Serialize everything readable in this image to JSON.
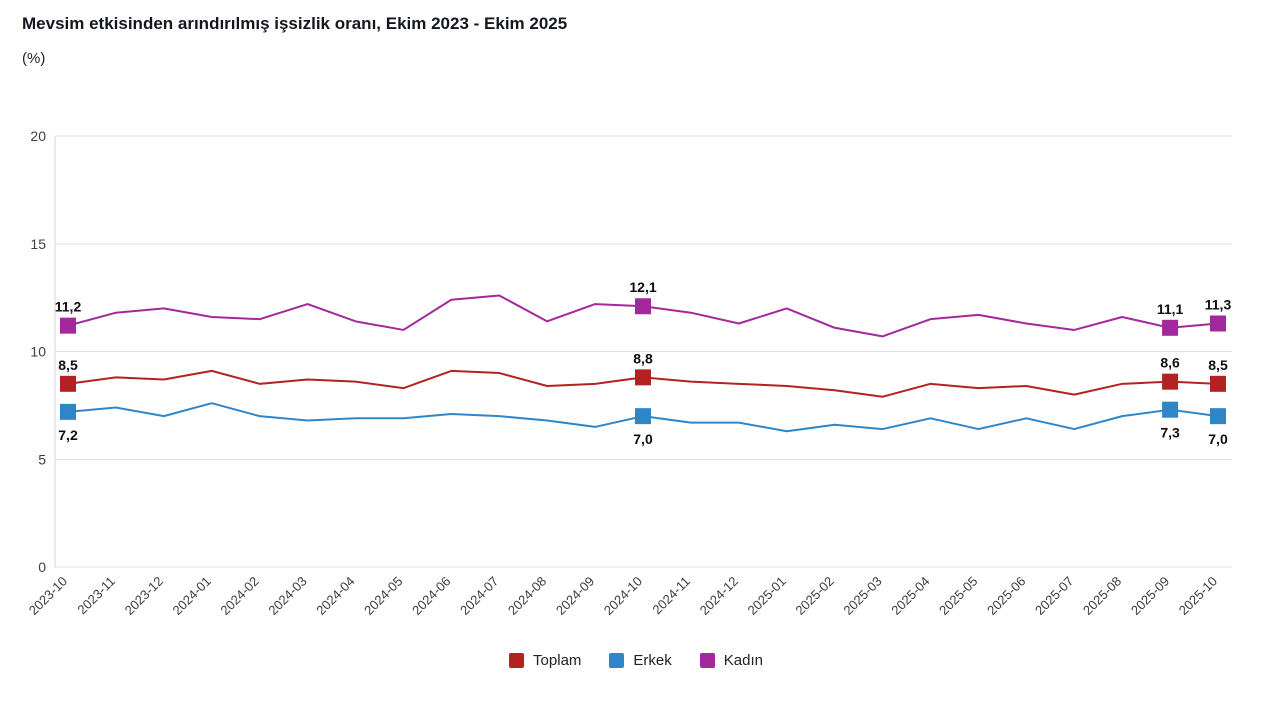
{
  "header": {
    "title": "Mevsim etkisinden arındırılmış işsizlik oranı, Ekim 2023 - Ekim 2025",
    "unit_label": "(%)"
  },
  "chart_data": {
    "type": "line",
    "title": "Mevsim etkisinden arındırılmış işsizlik oranı, Ekim 2023 - Ekim 2025",
    "unit_label": "(%)",
    "ylim": [
      0,
      20
    ],
    "yticks": [
      0,
      5,
      10,
      15,
      20
    ],
    "grid": "horizontal",
    "legend_position": "bottom",
    "categories": [
      "2023-10",
      "2023-11",
      "2023-12",
      "2024-01",
      "2024-02",
      "2024-03",
      "2024-04",
      "2024-05",
      "2024-06",
      "2024-07",
      "2024-08",
      "2024-09",
      "2024-10",
      "2024-11",
      "2024-12",
      "2025-01",
      "2025-02",
      "2025-03",
      "2025-04",
      "2025-05",
      "2025-06",
      "2025-07",
      "2025-08",
      "2025-09",
      "2025-10"
    ],
    "series": [
      {
        "id": "toplam",
        "name": "Toplam",
        "color": "#b22222",
        "label_position": "above",
        "values": [
          8.5,
          8.8,
          8.7,
          9.1,
          8.5,
          8.7,
          8.6,
          8.3,
          9.1,
          9.0,
          8.4,
          8.5,
          8.8,
          8.6,
          8.5,
          8.4,
          8.2,
          7.9,
          8.5,
          8.3,
          8.4,
          8.0,
          8.5,
          8.6,
          8.5
        ]
      },
      {
        "id": "erkek",
        "name": "Erkek",
        "color": "#2e86c8",
        "label_position": "below",
        "values": [
          7.2,
          7.4,
          7.0,
          7.6,
          7.0,
          6.8,
          6.9,
          6.9,
          7.1,
          7.0,
          6.8,
          6.5,
          7.0,
          6.7,
          6.7,
          6.3,
          6.6,
          6.4,
          6.9,
          6.4,
          6.9,
          6.4,
          7.0,
          7.3,
          7.0
        ]
      },
      {
        "id": "kadin",
        "name": "Kadın",
        "color": "#a3289c",
        "label_position": "above",
        "values": [
          11.2,
          11.8,
          12.0,
          11.6,
          11.5,
          12.2,
          11.4,
          11.0,
          12.4,
          12.6,
          11.4,
          12.2,
          12.1,
          11.8,
          11.3,
          12.0,
          11.1,
          10.7,
          11.5,
          11.7,
          11.3,
          11.0,
          11.6,
          11.1,
          11.3
        ]
      }
    ],
    "highlighted_indices": [
      0,
      12,
      23,
      24
    ],
    "highlighted_labels": {
      "toplam": [
        "8,5",
        "8,8",
        "8,6",
        "8,5"
      ],
      "erkek": [
        "7,2",
        "7,0",
        "7,3",
        "7,0"
      ],
      "kadin": [
        "11,2",
        "12,1",
        "11,1",
        "11,3"
      ]
    }
  }
}
